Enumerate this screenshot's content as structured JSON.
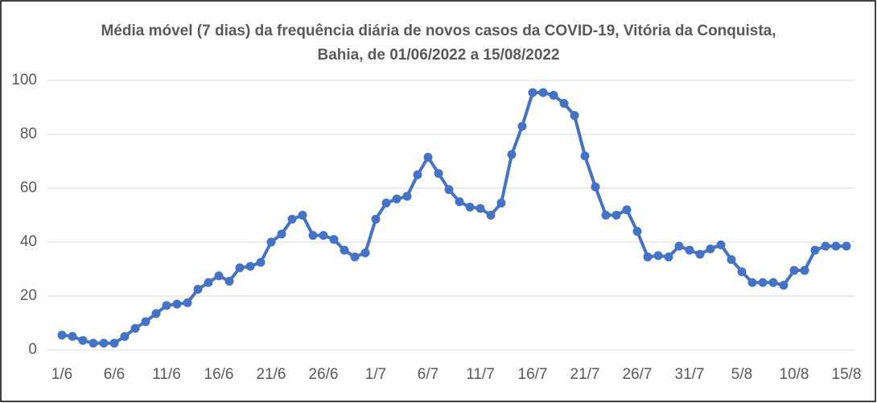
{
  "chart_data": {
    "type": "line",
    "title": "Média móvel (7 dias) da frequência diária de novos casos da COVID-19, Vitória da Conquista, Bahia, de 01/06/2022 a 15/08/2022",
    "categories": [
      "1/6",
      null,
      null,
      null,
      null,
      "6/6",
      null,
      null,
      null,
      null,
      "11/6",
      null,
      null,
      null,
      null,
      "16/6",
      null,
      null,
      null,
      null,
      "21/6",
      null,
      null,
      null,
      null,
      "26/6",
      null,
      null,
      null,
      null,
      "1/7",
      null,
      null,
      null,
      null,
      "6/7",
      null,
      null,
      null,
      null,
      "11/7",
      null,
      null,
      null,
      null,
      "16/7",
      null,
      null,
      null,
      null,
      "21/7",
      null,
      null,
      null,
      null,
      "26/7",
      null,
      null,
      null,
      null,
      "31/7",
      null,
      null,
      null,
      null,
      "5/8",
      null,
      null,
      null,
      null,
      "10/8",
      null,
      null,
      null,
      null,
      "15/8"
    ],
    "series": [
      {
        "name": "Média móvel",
        "color": "#4472c4",
        "values": [
          5.5,
          5,
          3.5,
          2.5,
          2.5,
          2.5,
          5,
          8,
          10.5,
          13.5,
          16.5,
          17,
          17.5,
          22.5,
          25,
          27.5,
          25.5,
          30.5,
          31,
          32.5,
          40,
          43,
          48.5,
          50,
          42.5,
          42.5,
          41,
          37,
          34.5,
          36,
          48.5,
          54.5,
          56,
          57,
          65,
          71.5,
          65.5,
          59.5,
          55,
          53,
          52.5,
          50,
          54.5,
          72.5,
          83,
          95.5,
          95.5,
          94.5,
          91.5,
          87,
          72,
          60.5,
          50,
          50,
          52,
          44,
          34.5,
          35,
          34.5,
          38.5,
          37,
          35.5,
          37.5,
          39,
          33.5,
          29,
          25,
          25,
          25,
          24,
          29.5,
          29.5,
          37,
          38.5,
          38.5,
          38.5
        ]
      }
    ],
    "ylim": [
      0,
      100
    ],
    "yticks": [
      0,
      20,
      40,
      60,
      80,
      100
    ],
    "grid": true
  }
}
